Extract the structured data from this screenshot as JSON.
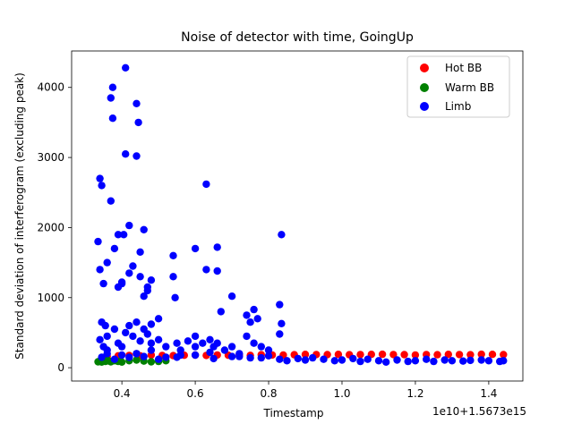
{
  "chart_data": {
    "type": "scatter",
    "title": "Noise of detector with time, GoingUp",
    "xlabel": "Timestamp",
    "ylabel": "Standard deviation of interferogram (excluding peak)",
    "x_offset_label": "1e10+1.5673e15",
    "xlim": [
      0.263,
      1.493
    ],
    "ylim": [
      -190,
      4520
    ],
    "x_ticks": [
      0.4,
      0.6,
      0.8,
      1.0,
      1.2,
      1.4
    ],
    "x_tick_labels": [
      "0.4",
      "0.6",
      "0.8",
      "1.0",
      "1.2",
      "1.4"
    ],
    "y_ticks": [
      0,
      1000,
      2000,
      3000,
      4000
    ],
    "y_tick_labels": [
      "0",
      "1000",
      "2000",
      "3000",
      "4000"
    ],
    "grid": false,
    "legend_position": "top-right",
    "series": [
      {
        "name": "Hot BB",
        "color": "#ff0000",
        "x": [
          0.36,
          0.39,
          0.42,
          0.45,
          0.48,
          0.51,
          0.54,
          0.57,
          0.6,
          0.63,
          0.66,
          0.69,
          0.72,
          0.75,
          0.78,
          0.81,
          0.84,
          0.87,
          0.9,
          0.93,
          0.96,
          0.99,
          1.02,
          1.05,
          1.08,
          1.11,
          1.14,
          1.17,
          1.2,
          1.23,
          1.26,
          1.29,
          1.32,
          1.35,
          1.38,
          1.41,
          1.44
        ],
        "y": [
          165,
          170,
          175,
          170,
          180,
          175,
          172,
          178,
          180,
          175,
          182,
          178,
          180,
          176,
          185,
          182,
          180,
          185,
          190,
          188,
          186,
          190,
          185,
          188,
          190,
          192,
          188,
          186,
          182,
          188,
          185,
          190,
          188,
          185,
          192,
          190,
          186
        ]
      },
      {
        "name": "Warm BB",
        "color": "#008000",
        "x": [
          0.335,
          0.34,
          0.345,
          0.35,
          0.355,
          0.36,
          0.365,
          0.37,
          0.38,
          0.39,
          0.4,
          0.42,
          0.44,
          0.46,
          0.48,
          0.5,
          0.52
        ],
        "y": [
          85,
          95,
          80,
          100,
          90,
          110,
          95,
          85,
          100,
          90,
          80,
          100,
          110,
          95,
          85,
          90,
          100
        ]
      },
      {
        "name": "Limb",
        "color": "#0000ff",
        "x": [
          0.335,
          0.34,
          0.345,
          0.35,
          0.355,
          0.36,
          0.37,
          0.375,
          0.38,
          0.39,
          0.4,
          0.405,
          0.41,
          0.42,
          0.43,
          0.44,
          0.445,
          0.45,
          0.46,
          0.47,
          0.48,
          0.5,
          0.54,
          0.6,
          0.63,
          0.66,
          0.835,
          0.34,
          0.345,
          0.37,
          0.375,
          0.39,
          0.4,
          0.41,
          0.42,
          0.44,
          0.45,
          0.46,
          0.47,
          0.48,
          0.54,
          0.545,
          0.6,
          0.63,
          0.66,
          0.67,
          0.7,
          0.74,
          0.75,
          0.76,
          0.77,
          0.83,
          0.835,
          0.34,
          0.35,
          0.36,
          0.38,
          0.39,
          0.41,
          0.42,
          0.43,
          0.44,
          0.45,
          0.46,
          0.47,
          0.48,
          0.5,
          0.52,
          0.55,
          0.56,
          0.58,
          0.6,
          0.62,
          0.64,
          0.65,
          0.66,
          0.68,
          0.7,
          0.72,
          0.74,
          0.76,
          0.78,
          0.8,
          0.83,
          0.345,
          0.36,
          0.38,
          0.4,
          0.42,
          0.44,
          0.46,
          0.5,
          0.55,
          0.6,
          0.65,
          0.7,
          0.75,
          0.8,
          0.83,
          0.85,
          0.88,
          0.9,
          0.92,
          0.95,
          0.98,
          1.0,
          1.03,
          1.05,
          1.07,
          1.1,
          1.12,
          1.15,
          1.18,
          1.2,
          1.23,
          1.25,
          1.28,
          1.3,
          1.33,
          1.35,
          1.38,
          1.4,
          1.43,
          1.44,
          0.36,
          0.4,
          0.44,
          0.48,
          0.52,
          0.56,
          0.64,
          0.72,
          0.78
        ],
        "y": [
          1800,
          2700,
          2600,
          1200,
          600,
          1500,
          3850,
          4000,
          1700,
          1900,
          1200,
          1900,
          4280,
          1350,
          1450,
          3770,
          3500,
          1650,
          1970,
          1150,
          1250,
          700,
          1600,
          1700,
          2620,
          1720,
          1900,
          1400,
          650,
          2380,
          3560,
          1150,
          1220,
          3050,
          2030,
          3020,
          1300,
          1020,
          1100,
          620,
          1300,
          1000,
          450,
          1400,
          1380,
          800,
          1020,
          750,
          650,
          830,
          700,
          900,
          630,
          400,
          300,
          450,
          550,
          350,
          500,
          600,
          450,
          650,
          380,
          550,
          480,
          350,
          400,
          300,
          350,
          250,
          380,
          300,
          350,
          400,
          300,
          350,
          250,
          300,
          200,
          450,
          350,
          300,
          250,
          480,
          150,
          200,
          120,
          180,
          150,
          200,
          160,
          120,
          150,
          180,
          130,
          160,
          140,
          170,
          120,
          100,
          130,
          110,
          140,
          120,
          100,
          110,
          130,
          90,
          120,
          100,
          80,
          110,
          90,
          100,
          120,
          90,
          110,
          100,
          95,
          105,
          110,
          100,
          90,
          100,
          250,
          300,
          200,
          250,
          150,
          180,
          220,
          160,
          140
        ]
      }
    ]
  }
}
